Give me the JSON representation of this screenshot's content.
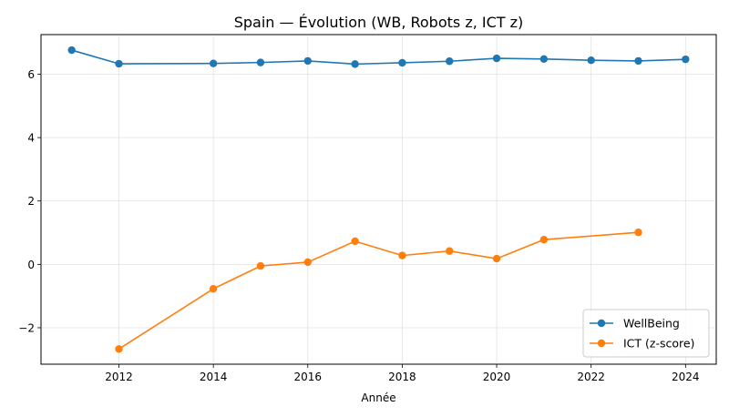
{
  "chart_data": {
    "type": "line",
    "title": "Spain — Évolution (WB, Robots z, ICT z)",
    "xlabel": "Année",
    "ylabel": "",
    "xlim": [
      2010.35,
      2024.65
    ],
    "ylim": [
      -3.15,
      7.25
    ],
    "xticks": [
      2012,
      2014,
      2016,
      2018,
      2020,
      2022,
      2024
    ],
    "yticks": [
      -2,
      0,
      2,
      4,
      6
    ],
    "ytick_labels": [
      "−2",
      "0",
      "2",
      "4",
      "6"
    ],
    "grid": true,
    "legend_position": "lower right",
    "series": [
      {
        "name": "WellBeing",
        "color": "#1f77b4",
        "marker": "circle",
        "x": [
          2011,
          2012,
          2014,
          2015,
          2016,
          2017,
          2018,
          2019,
          2020,
          2021,
          2022,
          2023,
          2024
        ],
        "y": [
          6.76,
          6.33,
          6.34,
          6.37,
          6.42,
          6.32,
          6.36,
          6.41,
          6.5,
          6.48,
          6.44,
          6.42,
          6.47
        ]
      },
      {
        "name": "ICT (z-score)",
        "color": "#ff7f0e",
        "marker": "circle",
        "x": [
          2012,
          2014,
          2015,
          2016,
          2017,
          2018,
          2019,
          2020,
          2021,
          2023
        ],
        "y": [
          -2.67,
          -0.77,
          -0.05,
          0.07,
          0.73,
          0.28,
          0.42,
          0.18,
          0.78,
          1.01
        ]
      }
    ]
  }
}
